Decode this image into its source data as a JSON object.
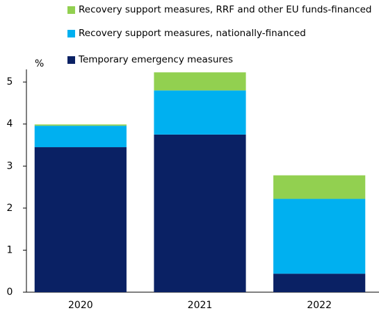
{
  "chart_data": {
    "type": "stacked_bar",
    "y_label": "%",
    "categories": [
      "2020",
      "2021",
      "2022"
    ],
    "series": [
      {
        "name": "Temporary emergency measures",
        "color": "#0a2164",
        "values": [
          3.45,
          3.75,
          0.44
        ]
      },
      {
        "name": "Recovery support measures, nationally-financed",
        "color": "#00b0f0",
        "values": [
          0.51,
          1.05,
          1.78
        ]
      },
      {
        "name": "Recovery support measures, RRF and other EU funds-financed",
        "color": "#92d050",
        "values": [
          0.03,
          0.43,
          0.56
        ]
      }
    ],
    "ylim": [
      0,
      5.3
    ],
    "yticks": [
      0,
      1,
      2,
      3,
      4,
      5
    ],
    "grid": false
  }
}
